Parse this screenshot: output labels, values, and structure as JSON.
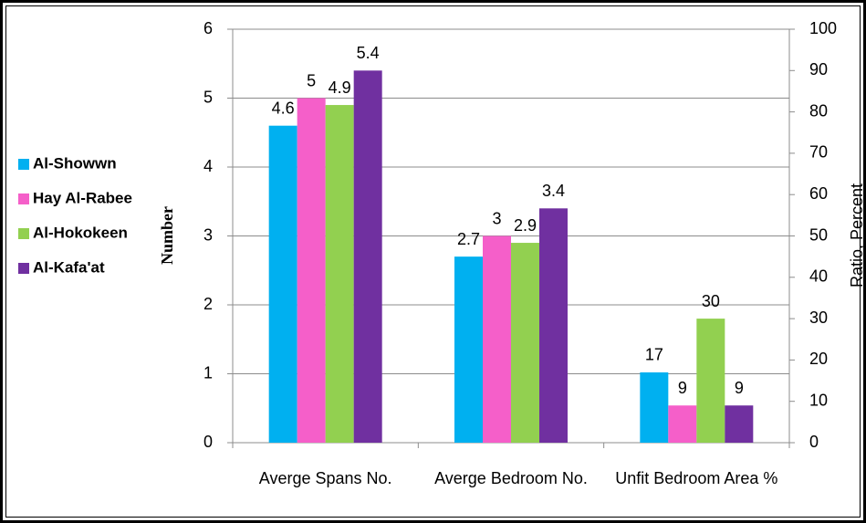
{
  "chart_data": {
    "type": "bar",
    "categories": [
      "Averge Spans No.",
      "Averge Bedroom No.",
      "Unfit Bedroom Area %"
    ],
    "category_axis": [
      "y",
      "y",
      "y2"
    ],
    "series": [
      {
        "name": "Al-Showwn",
        "color": "#00b0f0",
        "values": [
          4.6,
          2.7,
          17
        ]
      },
      {
        "name": "Hay Al-Rabee",
        "color": "#f55fc9",
        "values": [
          5,
          3,
          9
        ]
      },
      {
        "name": "Al-Hokokeen",
        "color": "#92d050",
        "values": [
          4.9,
          2.9,
          30
        ]
      },
      {
        "name": "Al-Kafa'at",
        "color": "#7030a0",
        "values": [
          5.4,
          3.4,
          9
        ]
      }
    ],
    "ylabel": "Number",
    "y2label": "Ratio, Percent",
    "ylim": [
      0,
      6
    ],
    "yticks": [
      0,
      1,
      2,
      3,
      4,
      5,
      6
    ],
    "y2lim": [
      0,
      100
    ],
    "y2ticks": [
      0,
      10,
      20,
      30,
      40,
      50,
      60,
      70,
      80,
      90,
      100
    ],
    "grid": true,
    "legend": "left"
  }
}
